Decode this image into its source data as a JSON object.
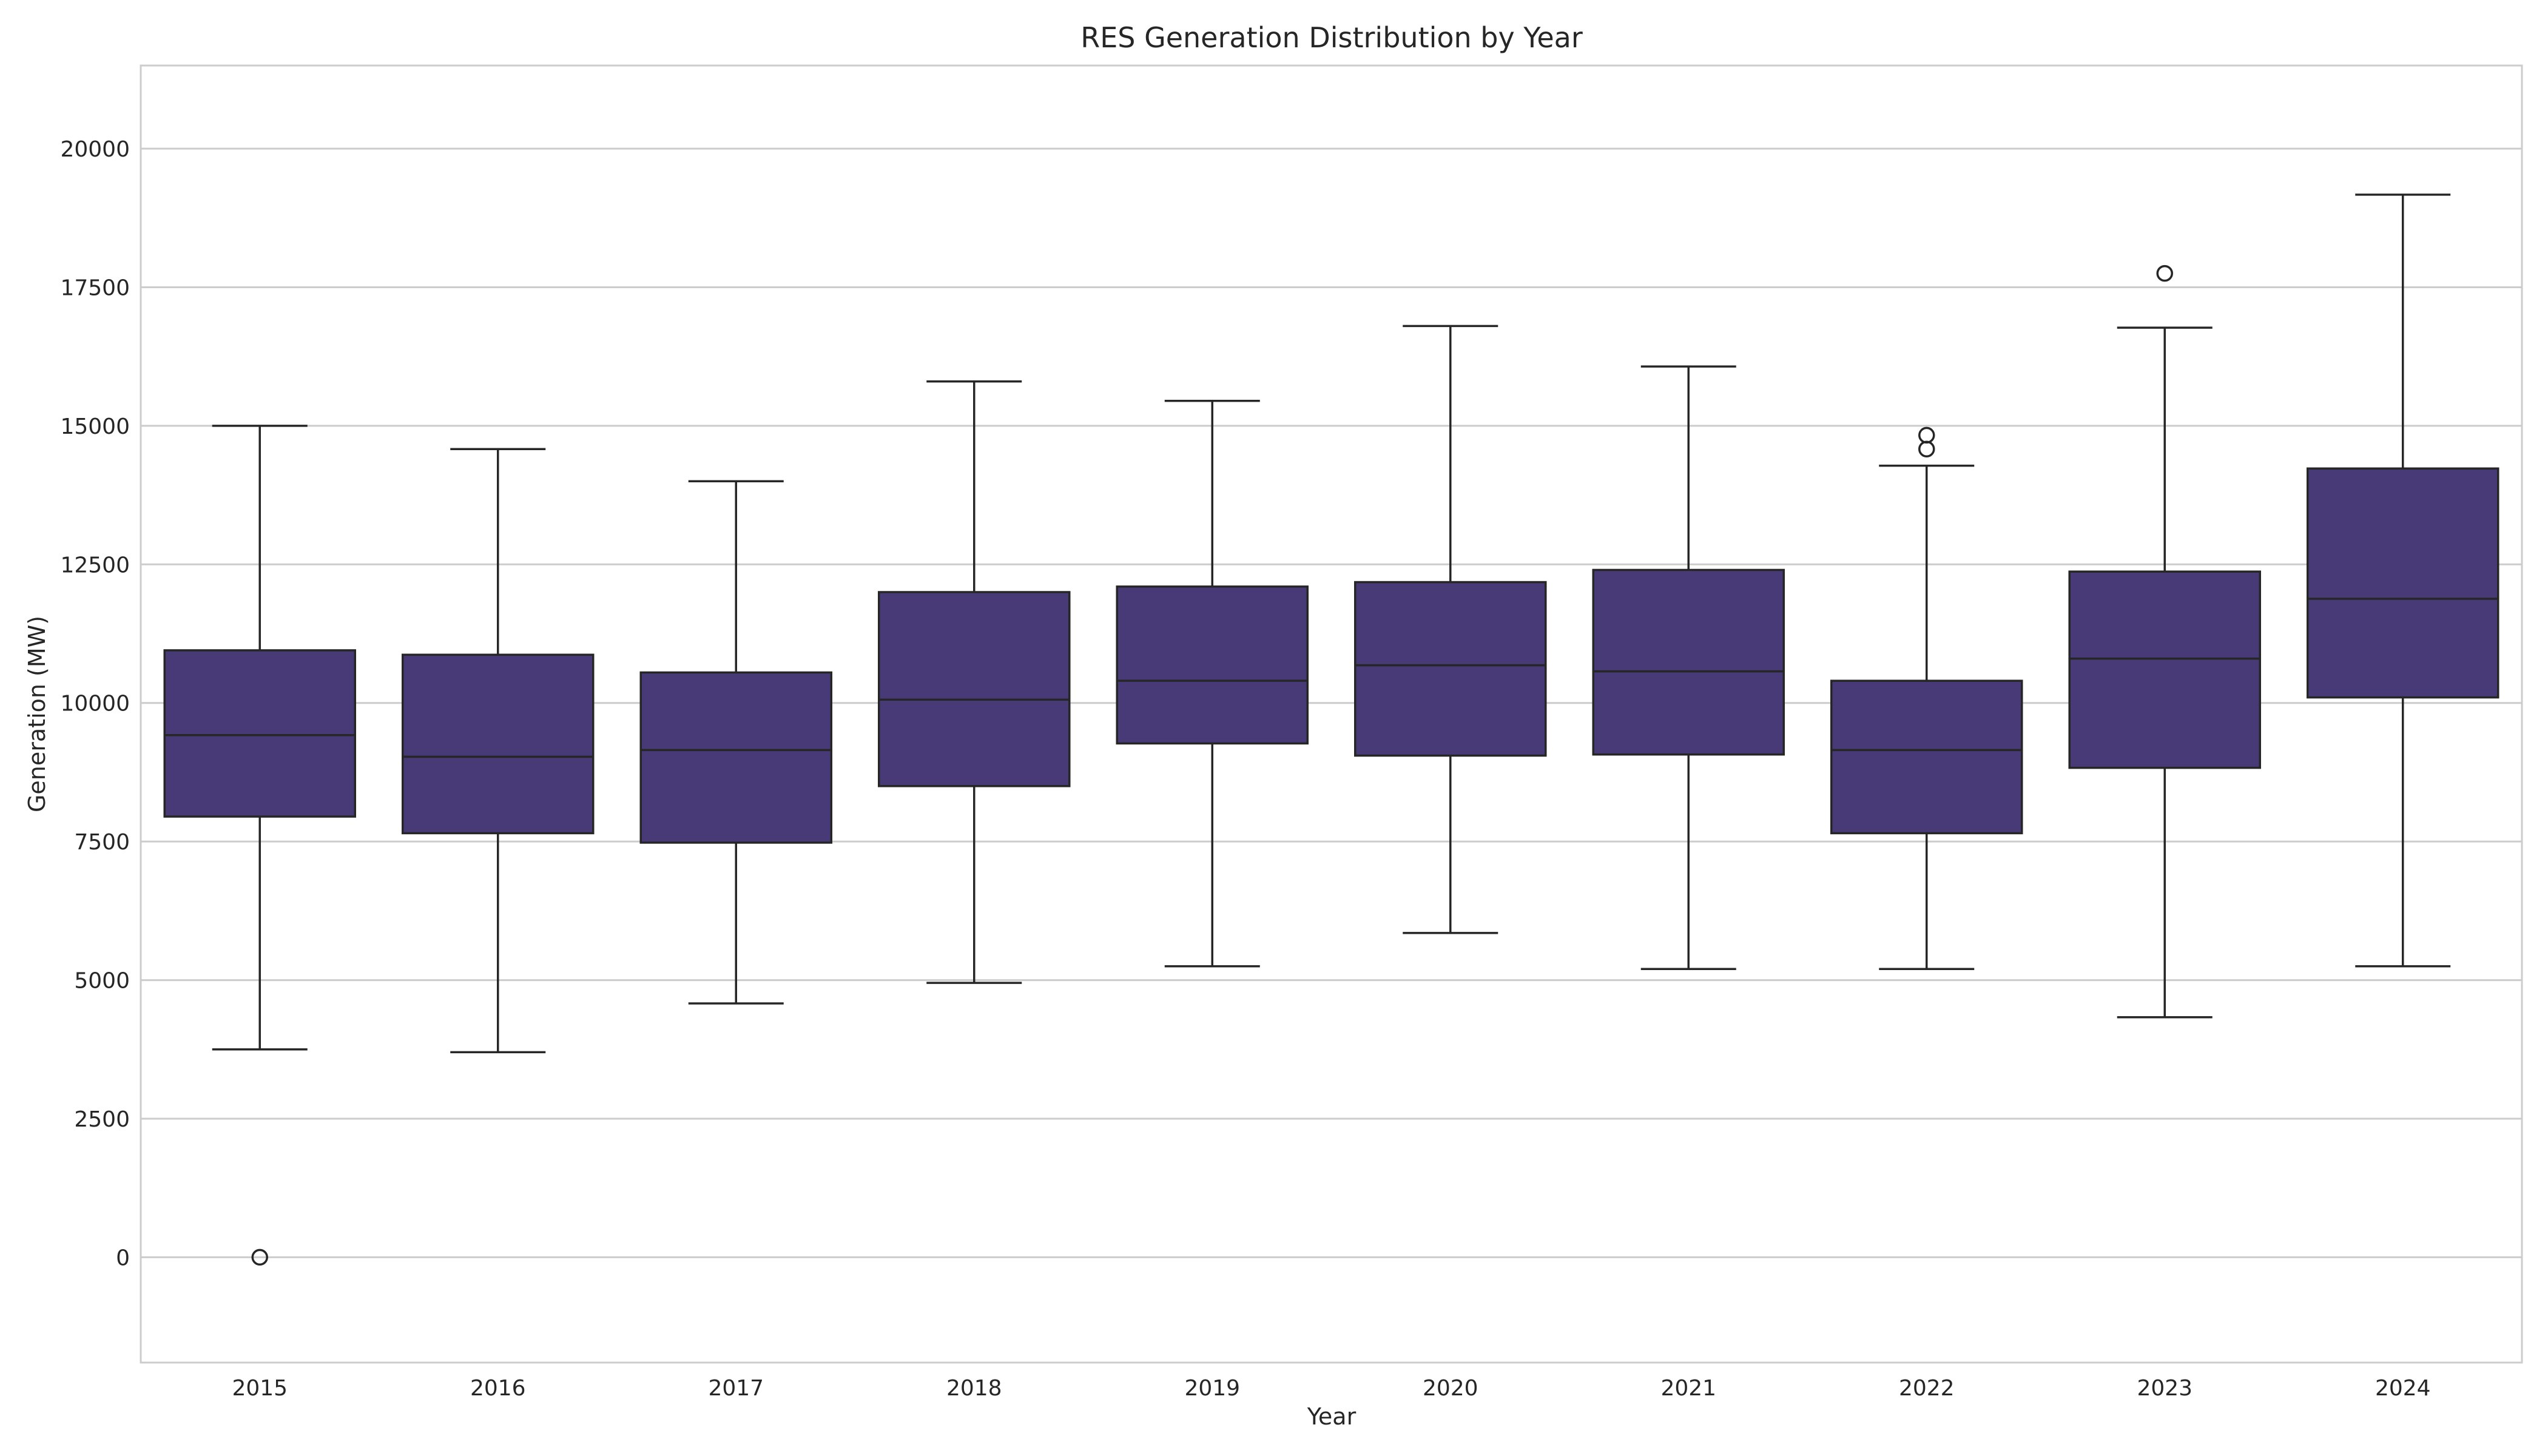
{
  "chart_data": {
    "type": "box",
    "title": "RES Generation Distribution by Year",
    "xlabel": "Year",
    "ylabel": "Generation (MW)",
    "ylim": [
      -1900,
      21500
    ],
    "yticks": [
      0,
      2500,
      5000,
      7500,
      10000,
      12500,
      15000,
      17500,
      20000
    ],
    "ytick_labels": [
      "0",
      "2500",
      "5000",
      "7500",
      "10000",
      "12500",
      "15000",
      "17500",
      "20000"
    ],
    "grid": true,
    "box_color": "#483a77",
    "line_color": "#262626",
    "categories": [
      "2015",
      "2016",
      "2017",
      "2018",
      "2019",
      "2020",
      "2021",
      "2022",
      "2023",
      "2024"
    ],
    "boxes": [
      {
        "year": "2015",
        "whisker_low": 3750,
        "q1": 7950,
        "median": 9420,
        "q3": 10950,
        "whisker_high": 15000,
        "outliers": [
          0
        ]
      },
      {
        "year": "2016",
        "whisker_low": 3700,
        "q1": 7650,
        "median": 9030,
        "q3": 10870,
        "whisker_high": 14580,
        "outliers": []
      },
      {
        "year": "2017",
        "whisker_low": 4580,
        "q1": 7480,
        "median": 9150,
        "q3": 10550,
        "whisker_high": 14000,
        "outliers": []
      },
      {
        "year": "2018",
        "whisker_low": 4950,
        "q1": 8500,
        "median": 10060,
        "q3": 12000,
        "whisker_high": 15800,
        "outliers": []
      },
      {
        "year": "2019",
        "whisker_low": 5250,
        "q1": 9270,
        "median": 10400,
        "q3": 12100,
        "whisker_high": 15450,
        "outliers": []
      },
      {
        "year": "2020",
        "whisker_low": 5850,
        "q1": 9050,
        "median": 10680,
        "q3": 12180,
        "whisker_high": 16800,
        "outliers": []
      },
      {
        "year": "2021",
        "whisker_low": 5200,
        "q1": 9070,
        "median": 10570,
        "q3": 12400,
        "whisker_high": 16070,
        "outliers": []
      },
      {
        "year": "2022",
        "whisker_low": 5200,
        "q1": 7650,
        "median": 9150,
        "q3": 10400,
        "whisker_high": 14280,
        "outliers": [
          14580,
          14830
        ]
      },
      {
        "year": "2023",
        "whisker_low": 4330,
        "q1": 8830,
        "median": 10800,
        "q3": 12370,
        "whisker_high": 16770,
        "outliers": [
          17750
        ]
      },
      {
        "year": "2024",
        "whisker_low": 5250,
        "q1": 10100,
        "median": 11880,
        "q3": 14230,
        "whisker_high": 19170,
        "outliers": []
      }
    ]
  }
}
